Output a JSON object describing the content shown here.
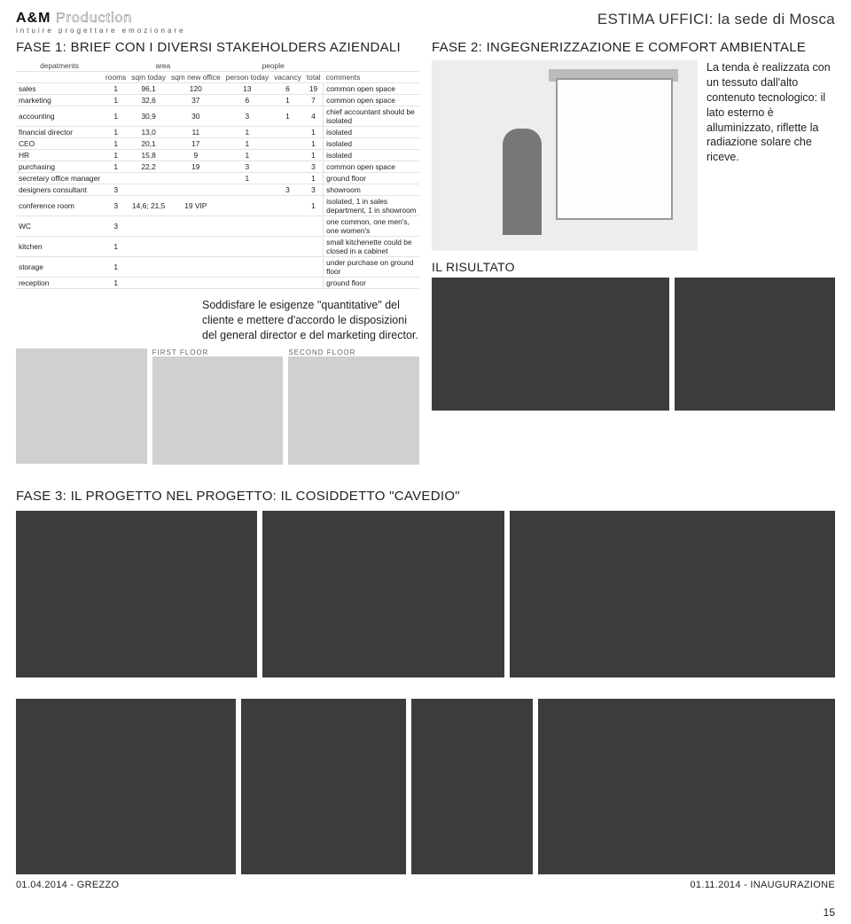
{
  "header": {
    "logo_main_a": "A&M",
    "logo_main_b": "Production",
    "logo_tag": "intuire   progettare   emozionare",
    "doc_title": "ESTIMA UFFICI: la sede di Mosca"
  },
  "fase1": {
    "heading": "FASE 1: BRIEF CON I DIVERSI STAKEHOLDERS AZIENDALI",
    "group_headers": {
      "col1": "depatments",
      "group_area": "area",
      "group_people": "people"
    },
    "columns": [
      "",
      "rooms",
      "sqm today",
      "sqm new office",
      "person today",
      "vacancy",
      "total",
      "comments"
    ],
    "rows": [
      [
        "sales",
        "1",
        "96,1",
        "120",
        "13",
        "6",
        "19",
        "common open space"
      ],
      [
        "marketing",
        "1",
        "32,6",
        "37",
        "6",
        "1",
        "7",
        "common open space"
      ],
      [
        "accounting",
        "1",
        "30,9",
        "30",
        "3",
        "1",
        "4",
        "chief accountant should be isolated"
      ],
      [
        "financial director",
        "1",
        "13,0",
        "11",
        "1",
        "",
        "1",
        "isolated"
      ],
      [
        "CEO",
        "1",
        "20,1",
        "17",
        "1",
        "",
        "1",
        "isolated"
      ],
      [
        "HR",
        "1",
        "15,8",
        "9",
        "1",
        "",
        "1",
        "isolated"
      ],
      [
        "purchasing",
        "1",
        "22,2",
        "19",
        "3",
        "",
        "3",
        "common open space"
      ],
      [
        "secretary office manager",
        "",
        "",
        "",
        "1",
        "",
        "1",
        "ground floor"
      ],
      [
        "designers consultant",
        "3",
        "",
        "",
        "",
        "3",
        "3",
        "showroom"
      ],
      [
        "conference room",
        "3",
        "14,6; 21,5",
        "19 VIP",
        "",
        "",
        "1",
        "isolated, 1 in sales department, 1 in showroom"
      ],
      [
        "WC",
        "3",
        "",
        "",
        "",
        "",
        "",
        "one common, one men's, one women's"
      ],
      [
        "kitchen",
        "1",
        "",
        "",
        "",
        "",
        "",
        "small kitchenette could be closed in a cabinet"
      ],
      [
        "storage",
        "1",
        "",
        "",
        "",
        "",
        "",
        "under purchase on ground floor"
      ],
      [
        "reception",
        "1",
        "",
        "",
        "",
        "",
        "",
        "ground floor"
      ]
    ],
    "brief_text": "Soddisfare le esigenze \"quantitative\" del cliente e mettere d'accordo le disposizioni del general director e del marketing director.",
    "plan_labels": {
      "first": "FIRST FLOOR",
      "second": "SECOND FLOOR"
    }
  },
  "fase2": {
    "heading": "FASE 2: INGEGNERIZZAZIONE E COMFORT AMBIENTALE",
    "caption": "La tenda è realizzata con un tessuto dall'alto contenuto tecnologico: il lato esterno è alluminizzato, riflette la radiazione solare che riceve.",
    "risultato": "IL RISULTATO"
  },
  "fase3": {
    "heading": "FASE 3: IL PROGETTO NEL PROGETTO: IL COSIDDETTO \"CAVEDIO\""
  },
  "bottom": {
    "left_caption": "01.04.2014 - GREZZO",
    "right_caption": "01.11.2014 - INAUGURAZIONE",
    "page": "15"
  }
}
